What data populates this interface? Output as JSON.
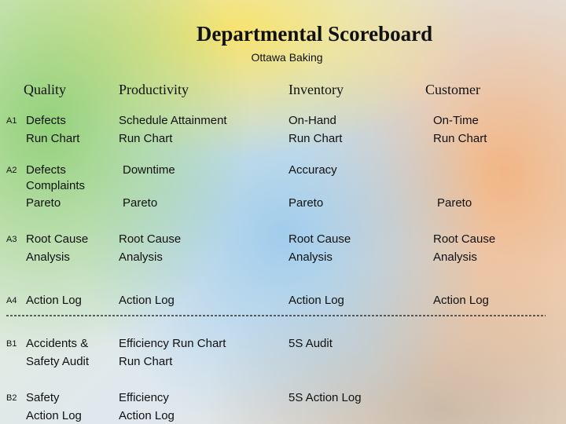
{
  "header": {
    "title": "Departmental Scoreboard",
    "subtitle": "Ottawa Baking"
  },
  "columns": [
    "Quality",
    "Productivity",
    "Inventory",
    "Customer"
  ],
  "rows": [
    {
      "id": "A1",
      "cells": [
        [
          "Defects",
          "Run Chart"
        ],
        [
          "Schedule Attainment",
          "Run Chart"
        ],
        [
          "On-Hand",
          "Run Chart"
        ],
        [
          "On-Time",
          "Run Chart"
        ]
      ]
    },
    {
      "id": "A2",
      "cells": [
        [
          "Defects",
          "Complaints",
          "Pareto"
        ],
        [
          "Downtime",
          "Pareto"
        ],
        [
          "Accuracy",
          "Pareto"
        ],
        [
          "Pareto"
        ]
      ]
    },
    {
      "id": "A3",
      "cells": [
        [
          "Root Cause",
          "Analysis"
        ],
        [
          "Root Cause",
          "Analysis"
        ],
        [
          "Root Cause",
          "Analysis"
        ],
        [
          "Root Cause",
          "Analysis"
        ]
      ]
    },
    {
      "id": "A4",
      "cells": [
        [
          "Action Log"
        ],
        [
          "Action Log"
        ],
        [
          "Action Log"
        ],
        [
          "Action Log"
        ]
      ]
    },
    {
      "id": "B1",
      "cells": [
        [
          "Accidents &",
          "Safety Audit"
        ],
        [
          "Efficiency Run Chart",
          "Run Chart"
        ],
        [
          "5S Audit"
        ]
      ]
    },
    {
      "id": "B2",
      "cells": [
        [
          "Safety",
          "Action Log"
        ],
        [
          "Efficiency",
          "Action Log"
        ],
        [
          "5S Action Log"
        ]
      ]
    }
  ]
}
